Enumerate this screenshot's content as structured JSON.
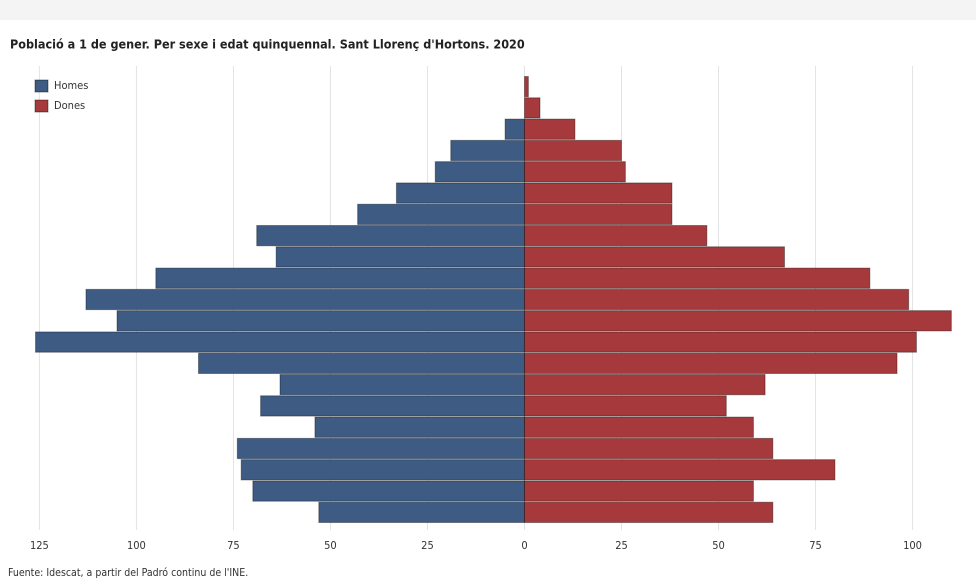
{
  "chart_data": {
    "type": "pyramid",
    "title": "Població a 1 de gener. Per sexe i edat quinquennal. Sant Llorenç d'Hortons. 2020",
    "source": "Fuente: Idescat, a partir del Padró continu de l'INE.",
    "categories": [
      null,
      null,
      null,
      null,
      null,
      null,
      null,
      null,
      null,
      null,
      null,
      null,
      null,
      null,
      null,
      null,
      null,
      null,
      null,
      null,
      null
    ],
    "series": [
      {
        "name": "Homes",
        "color": "#3d5b83",
        "side": "left",
        "values": [
          0,
          0,
          5,
          19,
          23,
          33,
          43,
          69,
          64,
          95,
          113,
          105,
          126,
          84,
          63,
          68,
          54,
          74,
          73,
          70,
          53
        ]
      },
      {
        "name": "Dones",
        "color": "#a6393b",
        "side": "right",
        "values": [
          1,
          4,
          13,
          25,
          26,
          38,
          38,
          47,
          67,
          89,
          99,
          110,
          101,
          96,
          62,
          52,
          59,
          64,
          80,
          59,
          64
        ]
      }
    ],
    "xlim": [
      -130,
      113
    ],
    "xticks": [
      {
        "value": -125,
        "label": "125"
      },
      {
        "value": -100,
        "label": "100"
      },
      {
        "value": -75,
        "label": "75"
      },
      {
        "value": -50,
        "label": "50"
      },
      {
        "value": -25,
        "label": "25"
      },
      0,
      25,
      50,
      75,
      100
    ],
    "grid": true,
    "legend": "top-left"
  }
}
